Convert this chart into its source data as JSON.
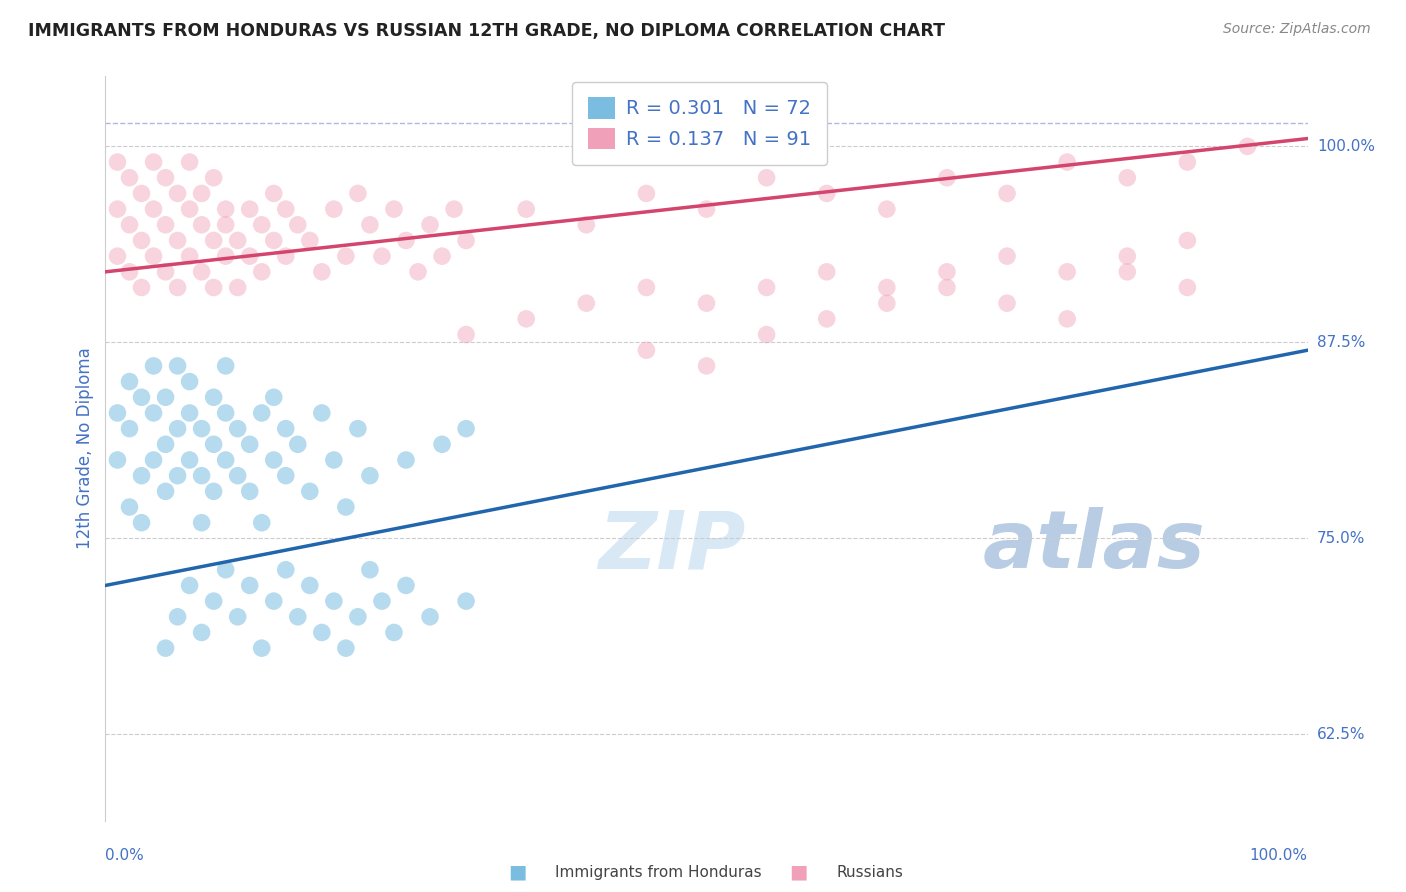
{
  "title": "IMMIGRANTS FROM HONDURAS VS RUSSIAN 12TH GRADE, NO DIPLOMA CORRELATION CHART",
  "source": "Source: ZipAtlas.com",
  "ylabel": "12th Grade, No Diploma",
  "yticks": [
    62.5,
    75.0,
    87.5,
    100.0
  ],
  "ytick_labels": [
    "62.5%",
    "75.0%",
    "87.5%",
    "100.0%"
  ],
  "xmin": 0.0,
  "xmax": 100.0,
  "ymin": 57.0,
  "ymax": 104.5,
  "legend_blue_label": "Immigrants from Honduras",
  "legend_pink_label": "Russians",
  "blue_R": 0.301,
  "blue_N": 72,
  "pink_R": 0.137,
  "pink_N": 91,
  "blue_color": "#7bbde0",
  "pink_color": "#f0a0b8",
  "blue_line_color": "#2166ac",
  "pink_line_color": "#d4456e",
  "label_color": "#4472c4",
  "watermark_color_zip": "#d8e8f5",
  "watermark_color_atlas": "#b8cce4",
  "blue_line_x0": 0.0,
  "blue_line_x1": 100.0,
  "blue_line_y0": 72.0,
  "blue_line_y1": 87.0,
  "pink_line_x0": 0.0,
  "pink_line_x1": 100.0,
  "pink_line_y0": 92.0,
  "pink_line_y1": 100.5,
  "grid_color": "#cccccc",
  "bg_color": "#ffffff",
  "blue_scatter_x": [
    1,
    1,
    2,
    2,
    2,
    3,
    3,
    3,
    4,
    4,
    4,
    5,
    5,
    5,
    6,
    6,
    6,
    7,
    7,
    7,
    8,
    8,
    8,
    9,
    9,
    9,
    10,
    10,
    10,
    11,
    11,
    12,
    12,
    13,
    13,
    14,
    14,
    15,
    15,
    16,
    17,
    18,
    19,
    20,
    21,
    22,
    25,
    28,
    30,
    5,
    6,
    7,
    8,
    9,
    10,
    11,
    12,
    13,
    14,
    15,
    16,
    17,
    18,
    19,
    20,
    21,
    22,
    23,
    24,
    25,
    27,
    30
  ],
  "blue_scatter_y": [
    83,
    80,
    82,
    85,
    77,
    84,
    79,
    76,
    83,
    80,
    86,
    81,
    84,
    78,
    82,
    86,
    79,
    83,
    80,
    85,
    79,
    82,
    76,
    84,
    81,
    78,
    80,
    83,
    86,
    79,
    82,
    78,
    81,
    83,
    76,
    80,
    84,
    79,
    82,
    81,
    78,
    83,
    80,
    77,
    82,
    79,
    80,
    81,
    82,
    68,
    70,
    72,
    69,
    71,
    73,
    70,
    72,
    68,
    71,
    73,
    70,
    72,
    69,
    71,
    68,
    70,
    73,
    71,
    69,
    72,
    70,
    71
  ],
  "pink_scatter_x": [
    1,
    1,
    1,
    2,
    2,
    2,
    3,
    3,
    3,
    4,
    4,
    4,
    5,
    5,
    5,
    6,
    6,
    6,
    7,
    7,
    7,
    8,
    8,
    8,
    9,
    9,
    9,
    10,
    10,
    10,
    11,
    11,
    12,
    12,
    13,
    13,
    14,
    14,
    15,
    15,
    16,
    17,
    18,
    19,
    20,
    21,
    22,
    23,
    24,
    25,
    26,
    27,
    28,
    29,
    30,
    35,
    40,
    45,
    50,
    55,
    60,
    65,
    70,
    75,
    80,
    85,
    90,
    95,
    30,
    35,
    40,
    45,
    50,
    55,
    60,
    65,
    70,
    75,
    80,
    85,
    90,
    45,
    50,
    55,
    60,
    65,
    70,
    75,
    80,
    85,
    90
  ],
  "pink_scatter_y": [
    96,
    93,
    99,
    95,
    92,
    98,
    94,
    91,
    97,
    96,
    93,
    99,
    95,
    92,
    98,
    94,
    91,
    97,
    96,
    93,
    99,
    95,
    92,
    97,
    94,
    91,
    98,
    96,
    93,
    95,
    94,
    91,
    96,
    93,
    95,
    92,
    97,
    94,
    96,
    93,
    95,
    94,
    92,
    96,
    93,
    97,
    95,
    93,
    96,
    94,
    92,
    95,
    93,
    96,
    94,
    96,
    95,
    97,
    96,
    98,
    97,
    96,
    98,
    97,
    99,
    98,
    99,
    100,
    88,
    89,
    90,
    91,
    90,
    91,
    92,
    91,
    92,
    93,
    92,
    93,
    94,
    87,
    86,
    88,
    89,
    90,
    91,
    90,
    89,
    92,
    91
  ]
}
